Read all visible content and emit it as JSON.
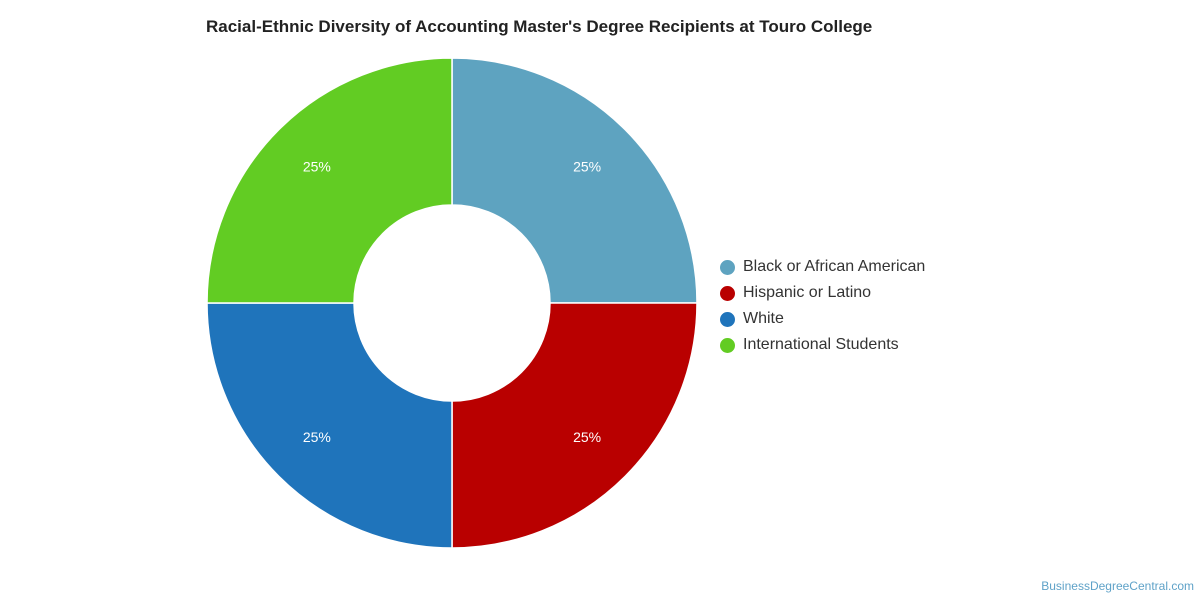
{
  "chart_data": {
    "type": "pie",
    "title": "Racial-Ethnic Diversity of Accounting Master's Degree Recipients at Touro College",
    "donut": true,
    "legend_position": "right",
    "slices": [
      {
        "label": "Black or African American",
        "value": 25,
        "display": "25%",
        "color": "#5ea3c0"
      },
      {
        "label": "Hispanic or Latino",
        "value": 25,
        "display": "25%",
        "color": "#b90000"
      },
      {
        "label": "White",
        "value": 25,
        "display": "25%",
        "color": "#1f74bb"
      },
      {
        "label": "International Students",
        "value": 25,
        "display": "25%",
        "color": "#62cc23"
      }
    ]
  },
  "footer": {
    "credit": "BusinessDegreeCentral.com"
  }
}
